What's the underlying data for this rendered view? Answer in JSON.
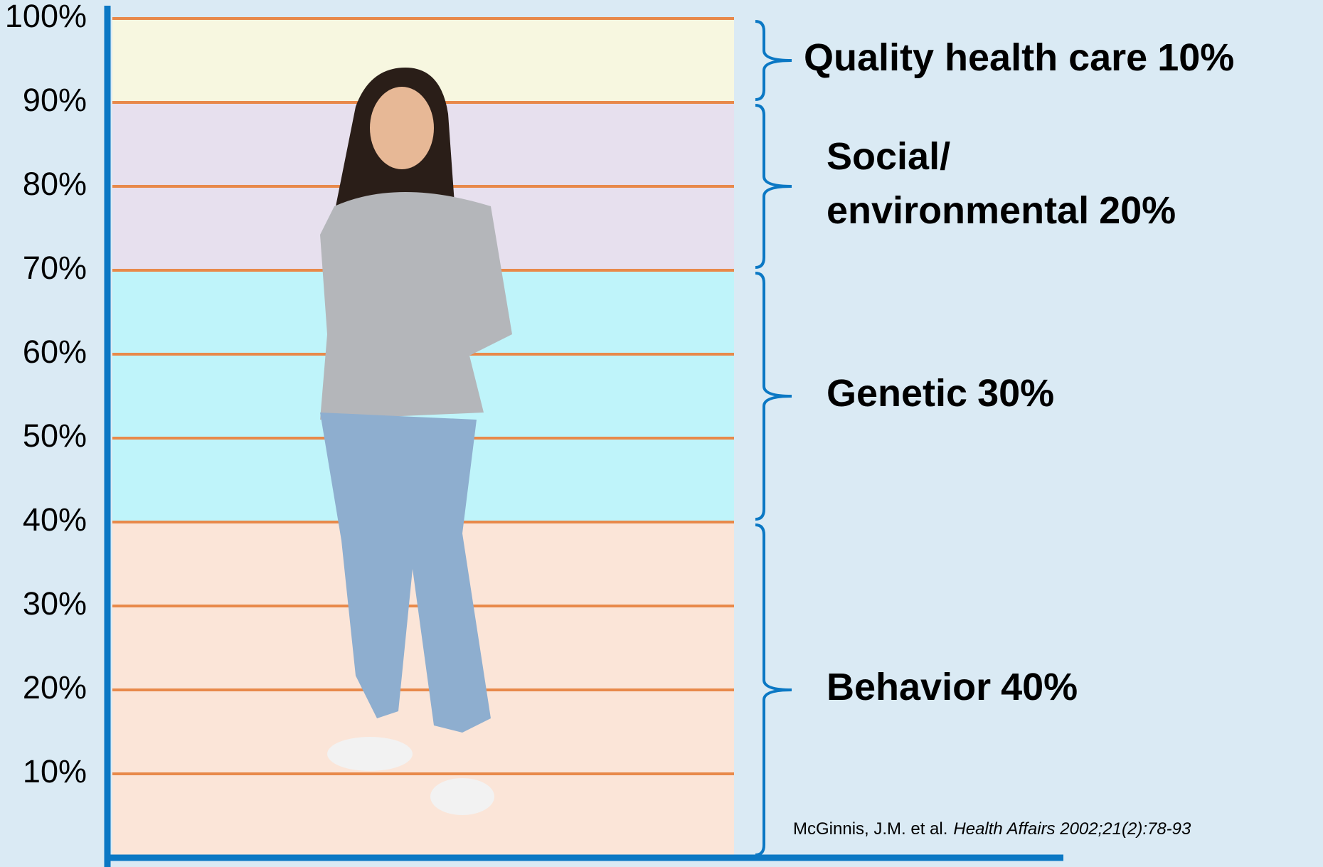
{
  "chart_data": {
    "type": "stacked-band",
    "ylim": [
      0,
      100
    ],
    "yticks": [
      {
        "value": 10,
        "label": "10%"
      },
      {
        "value": 20,
        "label": "20%"
      },
      {
        "value": 30,
        "label": "30%"
      },
      {
        "value": 40,
        "label": "40%"
      },
      {
        "value": 50,
        "label": "50%"
      },
      {
        "value": 60,
        "label": "60%"
      },
      {
        "value": 70,
        "label": "70%"
      },
      {
        "value": 80,
        "label": "80%"
      },
      {
        "value": 90,
        "label": "90%"
      },
      {
        "value": 100,
        "label": "100%"
      }
    ],
    "grid": true,
    "grid_color": "#e8894a",
    "axis_color": "#0b78c4",
    "segments": [
      {
        "name": "Behavior",
        "value": 40,
        "value_label": "40%",
        "color": "#fbe5d8"
      },
      {
        "name": "Genetic",
        "value": 30,
        "value_label": "30%",
        "color": "#bff4fa"
      },
      {
        "name": [
          "Social/",
          "environmental"
        ],
        "value": 20,
        "value_label": "20%",
        "color": "#e7e0ee"
      },
      {
        "name": "Quality health care",
        "value": 10,
        "value_label": "10%",
        "color": "#f7f7e0"
      }
    ],
    "citation": {
      "authors": "McGinnis, J.M. et al.",
      "source": "Health Affairs 2002;21(2):78-93"
    }
  }
}
